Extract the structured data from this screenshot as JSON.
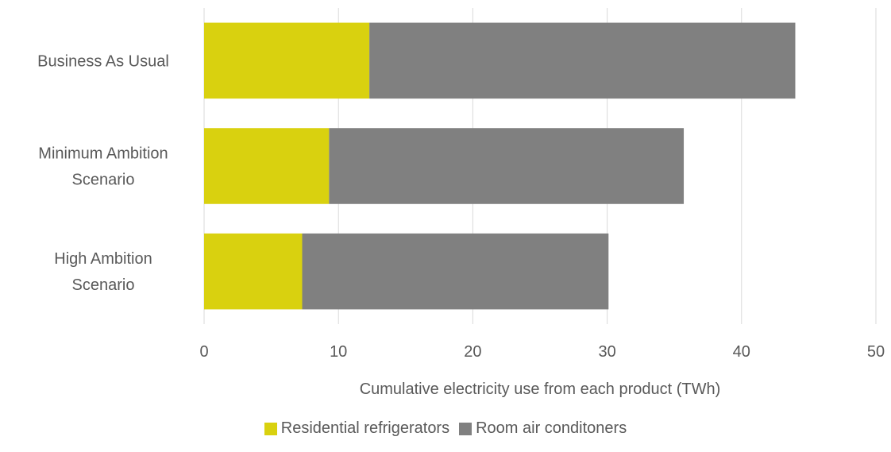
{
  "chart_data": {
    "type": "bar",
    "orientation": "horizontal",
    "stacked": true,
    "categories": [
      "Business As Usual",
      "Minimum Ambition Scenario",
      "High Ambition Scenario"
    ],
    "category_lines": [
      [
        "Business As Usual"
      ],
      [
        "Minimum Ambition",
        "Scenario"
      ],
      [
        "High Ambition",
        "Scenario"
      ]
    ],
    "series": [
      {
        "name": "Residential refrigerators",
        "values": [
          12.3,
          9.3,
          7.3
        ],
        "color": "#d9d10f"
      },
      {
        "name": "Room air conditoners",
        "values": [
          31.7,
          26.4,
          22.8
        ],
        "color": "#808080"
      }
    ],
    "xlabel": "Cumulative electricity use from each product (TWh)",
    "xlim": [
      0,
      50
    ],
    "xticks": [
      0,
      10,
      20,
      30,
      40,
      50
    ],
    "grid": "vertical",
    "legend": "bottom"
  }
}
